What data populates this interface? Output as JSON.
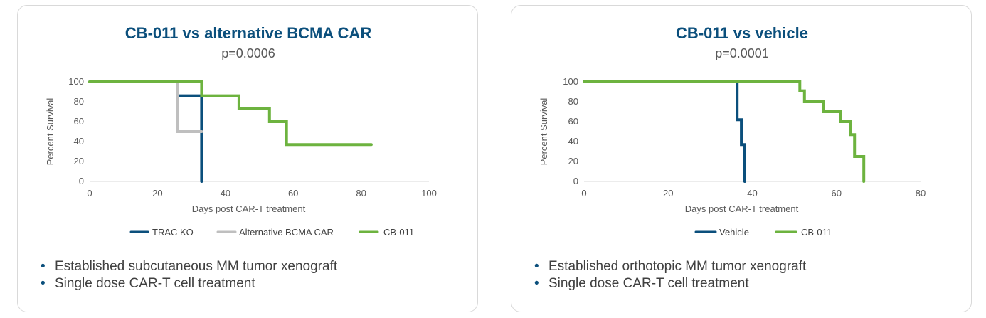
{
  "colors": {
    "navy": "#0b4f7c",
    "green": "#6db33f",
    "gray": "#bfbfbf"
  },
  "chart_data": [
    {
      "type": "line",
      "step": true,
      "title": "CB-011 vs alternative BCMA CAR",
      "subtitle": "p=0.0006",
      "xlabel": "Days post CAR-T treatment",
      "ylabel": "Percent Survival",
      "xlim": [
        0,
        100
      ],
      "ylim": [
        0,
        100
      ],
      "xticks": [
        "0",
        "20",
        "40",
        "60",
        "80",
        "100"
      ],
      "yticks": [
        "0",
        "20",
        "40",
        "60",
        "80",
        "100"
      ],
      "legend": "bottom",
      "series": [
        {
          "name": "TRAC KO",
          "color": "#0b4f7c",
          "points": [
            [
              0,
              100
            ],
            [
              26,
              100
            ],
            [
              26,
              86
            ],
            [
              33,
              86
            ],
            [
              33,
              0
            ]
          ]
        },
        {
          "name": "Alternative BCMA CAR",
          "color": "#bfbfbf",
          "points": [
            [
              0,
              100
            ],
            [
              26,
              100
            ],
            [
              26,
              50
            ],
            [
              33,
              50
            ]
          ]
        },
        {
          "name": "CB-011",
          "color": "#6db33f",
          "points": [
            [
              0,
              100
            ],
            [
              33,
              100
            ],
            [
              33,
              86
            ],
            [
              44,
              86
            ],
            [
              44,
              73
            ],
            [
              53,
              73
            ],
            [
              53,
              60
            ],
            [
              58,
              60
            ],
            [
              58,
              37
            ],
            [
              83,
              37
            ]
          ]
        }
      ],
      "bullets": [
        "Established subcutaneous MM tumor xenograft",
        "Single dose CAR-T cell treatment"
      ]
    },
    {
      "type": "line",
      "step": true,
      "title": "CB-011 vs vehicle",
      "subtitle": "p=0.0001",
      "xlabel": "Days post CAR-T treatment",
      "ylabel": "Percent Survival",
      "xlim": [
        0,
        80
      ],
      "ylim": [
        0,
        100
      ],
      "xticks": [
        "0",
        "20",
        "40",
        "60",
        "80"
      ],
      "yticks": [
        "0",
        "20",
        "40",
        "60",
        "80",
        "100"
      ],
      "legend": "bottom",
      "series": [
        {
          "name": "Vehicle",
          "color": "#0b4f7c",
          "points": [
            [
              0,
              100
            ],
            [
              36.4,
              100
            ],
            [
              36.4,
              62
            ],
            [
              37.4,
              62
            ],
            [
              37.4,
              37
            ],
            [
              38.2,
              37
            ],
            [
              38.2,
              0
            ]
          ]
        },
        {
          "name": "CB-011",
          "color": "#6db33f",
          "points": [
            [
              0,
              100
            ],
            [
              51.3,
              100
            ],
            [
              51.3,
              91
            ],
            [
              52.4,
              91
            ],
            [
              52.4,
              80
            ],
            [
              57,
              80
            ],
            [
              57,
              70
            ],
            [
              61,
              70
            ],
            [
              61,
              60
            ],
            [
              63.4,
              60
            ],
            [
              63.4,
              47
            ],
            [
              64.3,
              47
            ],
            [
              64.3,
              25
            ],
            [
              66.5,
              25
            ],
            [
              66.5,
              0
            ]
          ]
        }
      ],
      "bullets": [
        "Established orthotopic MM tumor xenograft",
        "Single dose CAR-T cell treatment"
      ]
    }
  ]
}
